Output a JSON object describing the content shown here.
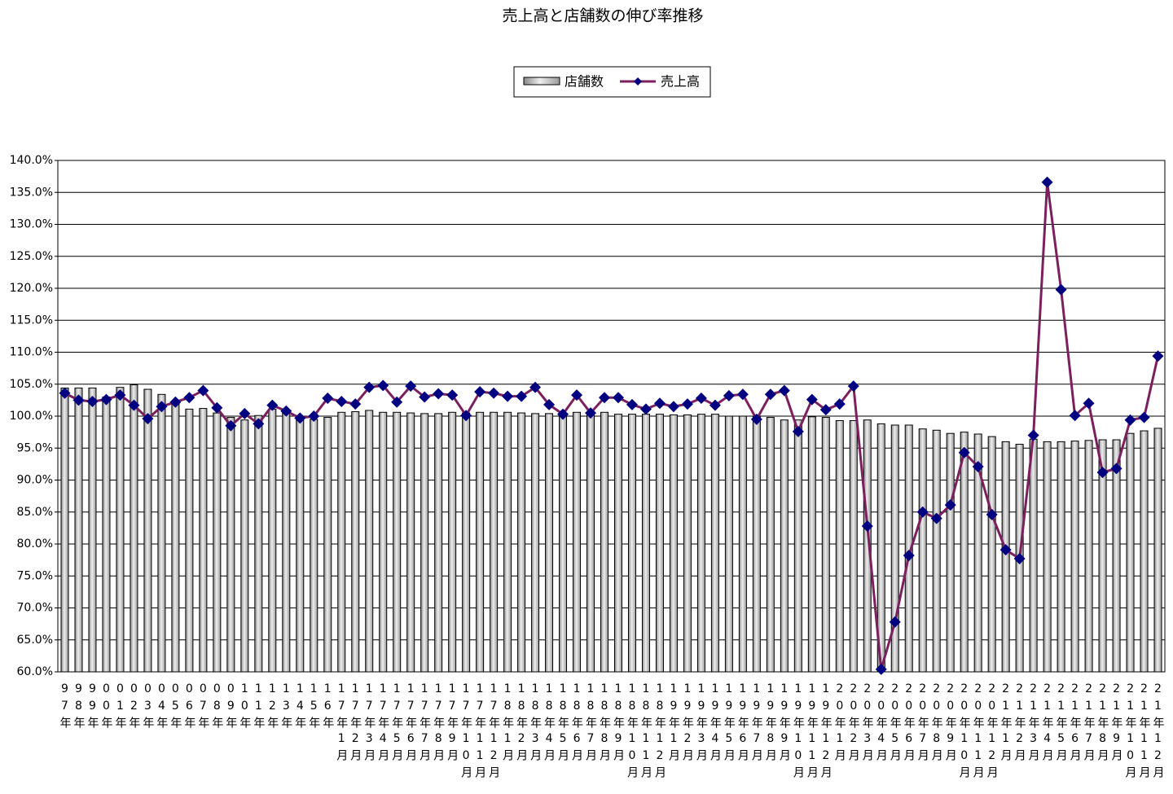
{
  "chart_data": {
    "type": "combo",
    "title": "売上高と店舗数の伸び率推移",
    "categories": [
      "97年",
      "98年",
      "99年",
      "00年",
      "01年",
      "02年",
      "03年",
      "04年",
      "05年",
      "06年",
      "07年",
      "08年",
      "09年",
      "10年",
      "11年",
      "12年",
      "13年",
      "14年",
      "15年",
      "16年",
      "17年1月",
      "17年2月",
      "17年3月",
      "17年4月",
      "17年5月",
      "17年6月",
      "17年7月",
      "17年8月",
      "17年9月",
      "17年10月",
      "17年11月",
      "17年12月",
      "18年1月",
      "18年2月",
      "18年3月",
      "18年4月",
      "18年5月",
      "18年6月",
      "18年7月",
      "18年8月",
      "18年9月",
      "18年10月",
      "18年11月",
      "18年12月",
      "19年1月",
      "19年2月",
      "19年3月",
      "19年4月",
      "19年5月",
      "19年6月",
      "19年7月",
      "19年8月",
      "19年9月",
      "19年10月",
      "19年11月",
      "19年12月",
      "20年1月",
      "20年2月",
      "20年3月",
      "20年4月",
      "20年5月",
      "20年6月",
      "20年7月",
      "20年8月",
      "20年9月",
      "20年10月",
      "20年11月",
      "20年12月",
      "21年1月",
      "21年2月",
      "21年3月",
      "21年4月",
      "21年5月",
      "21年6月",
      "21年7月",
      "21年8月",
      "21年9月",
      "21年10月",
      "21年11月",
      "21年12月"
    ],
    "series": [
      {
        "name": "店舗数",
        "type": "bar",
        "color": "#c0c0c0",
        "values": [
          104.4,
          104.4,
          104.4,
          103.0,
          104.5,
          104.9,
          104.2,
          103.4,
          102.0,
          101.1,
          101.2,
          100.5,
          99.8,
          99.4,
          100.1,
          101.1,
          100.6,
          99.8,
          99.5,
          99.8,
          100.6,
          100.7,
          100.9,
          100.6,
          100.6,
          100.5,
          100.4,
          100.4,
          100.6,
          100.5,
          100.6,
          100.6,
          100.6,
          100.5,
          100.4,
          100.4,
          100.3,
          100.6,
          100.5,
          100.6,
          100.3,
          100.3,
          100.3,
          100.3,
          100.2,
          100.2,
          100.3,
          100.3,
          100.0,
          100.0,
          99.9,
          99.8,
          99.4,
          99.4,
          99.9,
          99.8,
          99.3,
          99.3,
          99.4,
          98.8,
          98.6,
          98.6,
          98.0,
          97.8,
          97.3,
          97.5,
          97.2,
          96.8,
          96.0,
          95.6,
          96.4,
          96.0,
          96.0,
          96.1,
          96.2,
          96.3,
          96.3,
          97.3,
          97.7,
          98.1
        ]
      },
      {
        "name": "売上高",
        "type": "line",
        "color": "#7b1f5f",
        "marker_color": "#000080",
        "values": [
          103.6,
          102.5,
          102.3,
          102.6,
          103.3,
          101.7,
          99.6,
          101.5,
          102.2,
          102.9,
          104.0,
          101.3,
          98.5,
          100.4,
          98.8,
          101.7,
          100.8,
          99.7,
          100.0,
          102.8,
          102.3,
          101.9,
          104.5,
          104.8,
          102.2,
          104.7,
          103.0,
          103.5,
          103.3,
          100.1,
          103.8,
          103.6,
          103.1,
          103.1,
          104.5,
          101.8,
          100.3,
          103.3,
          100.5,
          102.9,
          102.9,
          101.8,
          101.1,
          102.0,
          101.5,
          101.9,
          102.8,
          101.7,
          103.2,
          103.4,
          99.5,
          103.4,
          104.0,
          97.6,
          102.6,
          101.0,
          101.9,
          104.7,
          82.8,
          60.4,
          67.8,
          78.2,
          85.0,
          84.0,
          86.1,
          94.3,
          92.1,
          84.6,
          79.1,
          77.7,
          97.0,
          136.6,
          119.8,
          100.1,
          102.0,
          91.2,
          91.8,
          99.4,
          99.8,
          109.4
        ]
      }
    ],
    "ylim": [
      60,
      140
    ],
    "yticks": [
      {
        "value": 60,
        "label": "60.0%"
      },
      {
        "value": 65,
        "label": "65.0%"
      },
      {
        "value": 70,
        "label": "70.0%"
      },
      {
        "value": 75,
        "label": "75.0%"
      },
      {
        "value": 80,
        "label": "80.0%"
      },
      {
        "value": 85,
        "label": "85.0%"
      },
      {
        "value": 90,
        "label": "90.0%"
      },
      {
        "value": 95,
        "label": "95.0%"
      },
      {
        "value": 100,
        "label": "100.0%"
      },
      {
        "value": 105,
        "label": "105.0%"
      },
      {
        "value": 110,
        "label": "110.0%"
      },
      {
        "value": 115,
        "label": "115.0%"
      },
      {
        "value": 120,
        "label": "120.0%"
      },
      {
        "value": 125,
        "label": "125.0%"
      },
      {
        "value": 130,
        "label": "130.0%"
      },
      {
        "value": 135,
        "label": "135.0%"
      },
      {
        "value": 140,
        "label": "140.0%"
      }
    ],
    "grid": true,
    "legend": "top"
  }
}
